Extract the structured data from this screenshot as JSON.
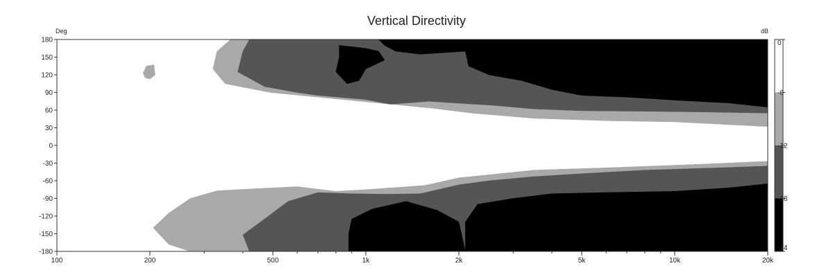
{
  "chart_data": {
    "type": "heatmap",
    "title": "Vertical Directivity",
    "xlabel": "",
    "ylabel": "Deg",
    "colorbar_label": "dB",
    "x_scale": "log",
    "xlim": [
      100,
      20000
    ],
    "ylim": [
      -180,
      180
    ],
    "x_ticks": [
      {
        "value": 100,
        "label": "100"
      },
      {
        "value": 200,
        "label": "200"
      },
      {
        "value": 500,
        "label": "500"
      },
      {
        "value": 1000,
        "label": "1k"
      },
      {
        "value": 2000,
        "label": "2k"
      },
      {
        "value": 5000,
        "label": "5k"
      },
      {
        "value": 10000,
        "label": "10k"
      },
      {
        "value": 20000,
        "label": "20k"
      }
    ],
    "y_ticks": [
      180,
      150,
      120,
      90,
      60,
      30,
      0,
      -30,
      -60,
      -90,
      -120,
      -150,
      -180
    ],
    "colorbar": {
      "ticks": [
        {
          "value": 0,
          "label": "0"
        },
        {
          "value": -6,
          "label": "-6"
        },
        {
          "value": -12,
          "label": "-12"
        },
        {
          "value": -18,
          "label": "-18"
        },
        {
          "value": -24,
          "label": "-24"
        }
      ],
      "levels": [
        {
          "from": 0,
          "to": -6,
          "color": "#ffffff"
        },
        {
          "from": -6,
          "to": -12,
          "color": "#a9a9a9"
        },
        {
          "from": -12,
          "to": -18,
          "color": "#555555"
        },
        {
          "from": -18,
          "to": -24,
          "color": "#000000"
        }
      ]
    },
    "contours": [
      {
        "level": -6,
        "color": "#a9a9a9",
        "regions": [
          [
            [
              365,
              180
            ],
            [
              330,
              160
            ],
            [
              320,
              130
            ],
            [
              350,
              105
            ],
            [
              490,
              90
            ],
            [
              1100,
              72
            ],
            [
              1650,
              63
            ],
            [
              2200,
              55
            ],
            [
              3500,
              46
            ],
            [
              6000,
              42
            ],
            [
              10000,
              40
            ],
            [
              20000,
              32
            ],
            [
              20000,
              -27
            ],
            [
              12000,
              -32
            ],
            [
              6000,
              -38
            ],
            [
              3500,
              -42
            ],
            [
              2000,
              -55
            ],
            [
              1550,
              -68
            ],
            [
              1000,
              -75
            ],
            [
              800,
              -78
            ],
            [
              600,
              -70
            ],
            [
              420,
              -74
            ],
            [
              330,
              -77
            ],
            [
              270,
              -90
            ],
            [
              230,
              -115
            ],
            [
              205,
              -140
            ],
            [
              230,
              -168
            ],
            [
              270,
              -180
            ],
            [
              20000,
              -180
            ],
            [
              20000,
              180
            ]
          ],
          [
            [
              200,
              113
            ],
            [
              208,
              120
            ],
            [
              206,
              137
            ],
            [
              195,
              135
            ],
            [
              190,
              123
            ],
            [
              193,
              115
            ]
          ]
        ]
      },
      {
        "level": -12,
        "color": "#555555",
        "regions": [
          [
            [
              420,
              180
            ],
            [
              400,
              160
            ],
            [
              385,
              125
            ],
            [
              470,
              100
            ],
            [
              600,
              90
            ],
            [
              700,
              85
            ],
            [
              1000,
              78
            ],
            [
              1200,
              70
            ],
            [
              1600,
              75
            ],
            [
              2600,
              68
            ],
            [
              3500,
              62
            ],
            [
              5000,
              59
            ],
            [
              8000,
              58
            ],
            [
              12000,
              57
            ],
            [
              20000,
              55
            ],
            [
              20000,
              -35
            ],
            [
              14000,
              -38
            ],
            [
              8000,
              -42
            ],
            [
              5000,
              -48
            ],
            [
              3500,
              -53
            ],
            [
              2500,
              -60
            ],
            [
              2000,
              -67
            ],
            [
              1500,
              -82
            ],
            [
              1150,
              -83
            ],
            [
              900,
              -82
            ],
            [
              700,
              -80
            ],
            [
              560,
              -95
            ],
            [
              470,
              -125
            ],
            [
              400,
              -152
            ],
            [
              420,
              -180
            ],
            [
              20000,
              -180
            ],
            [
              20000,
              180
            ]
          ]
        ]
      },
      {
        "level": -18,
        "color": "#000000",
        "regions": [
          [
            [
              1100,
              180
            ],
            [
              1150,
              170
            ],
            [
              1250,
              160
            ],
            [
              1500,
              155
            ],
            [
              2100,
              160
            ],
            [
              2300,
              180
            ]
          ],
          [
            [
              2300,
              180
            ],
            [
              2100,
              160
            ],
            [
              2150,
              135
            ],
            [
              2500,
              120
            ],
            [
              3200,
              110
            ],
            [
              4000,
              95
            ],
            [
              5000,
              85
            ],
            [
              7000,
              82
            ],
            [
              10000,
              77
            ],
            [
              15000,
              72
            ],
            [
              20000,
              65
            ],
            [
              20000,
              180
            ]
          ],
          [
            [
              820,
              170
            ],
            [
              1000,
              165
            ],
            [
              1100,
              160
            ],
            [
              1150,
              145
            ],
            [
              1000,
              130
            ],
            [
              950,
              110
            ],
            [
              870,
              105
            ],
            [
              800,
              125
            ],
            [
              820,
              150
            ]
          ],
          [
            [
              1050,
              -108
            ],
            [
              1350,
              -95
            ],
            [
              1700,
              -110
            ],
            [
              2000,
              -130
            ],
            [
              2100,
              -180
            ],
            [
              880,
              -180
            ],
            [
              880,
              -150
            ],
            [
              900,
              -125
            ]
          ],
          [
            [
              2100,
              -130
            ],
            [
              2300,
              -100
            ],
            [
              3000,
              -90
            ],
            [
              4000,
              -82
            ],
            [
              6000,
              -80
            ],
            [
              10000,
              -78
            ],
            [
              15000,
              -72
            ],
            [
              20000,
              -65
            ],
            [
              20000,
              -180
            ],
            [
              2100,
              -180
            ]
          ]
        ]
      }
    ]
  }
}
